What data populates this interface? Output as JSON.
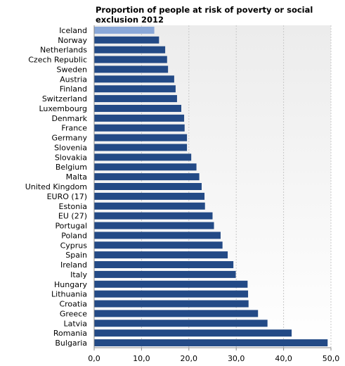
{
  "chart_data": {
    "type": "bar",
    "orientation": "horizontal",
    "title": "Proportion of people at risk of poverty or social exclusion 2012",
    "xlabel": "",
    "ylabel": "",
    "xlim": [
      0,
      50
    ],
    "ticks": [
      0,
      10,
      20,
      30,
      40,
      50
    ],
    "tick_labels": [
      "0,0",
      "10,0",
      "20,0",
      "30,0",
      "40,0",
      "50,0"
    ],
    "grid": true,
    "categories": [
      "Iceland",
      "Norway",
      "Netherlands",
      "Czech Republic",
      "Sweden",
      "Austria",
      "Finland",
      "Switzerland",
      "Luxembourg",
      "Denmark",
      "France",
      "Germany",
      "Slovenia",
      "Slovakia",
      "Belgium",
      "Malta",
      "United Kingdom",
      "EURO (17)",
      "Estonia",
      "EU (27)",
      "Portugal",
      "Poland",
      "Cyprus",
      "Spain",
      "Ireland",
      "Italy",
      "Hungary",
      "Lithuania",
      "Croatia",
      "Greece",
      "Latvia",
      "Romania",
      "Bulgaria"
    ],
    "values": [
      12.7,
      13.7,
      15.0,
      15.4,
      15.6,
      16.9,
      17.2,
      17.5,
      18.4,
      19.0,
      19.1,
      19.6,
      19.6,
      20.5,
      21.6,
      22.2,
      22.7,
      23.3,
      23.4,
      25.0,
      25.3,
      26.7,
      27.1,
      28.2,
      29.4,
      29.9,
      32.4,
      32.5,
      32.6,
      34.6,
      36.6,
      41.7,
      49.3
    ],
    "highlight": "Iceland",
    "colors": {
      "bar": "#234a86",
      "highlight": "#8aa8d8",
      "plot_bg_top": "#ececec",
      "plot_bg_bottom": "#ffffff",
      "grid": "#c8c8c8",
      "axis": "#888888"
    }
  }
}
